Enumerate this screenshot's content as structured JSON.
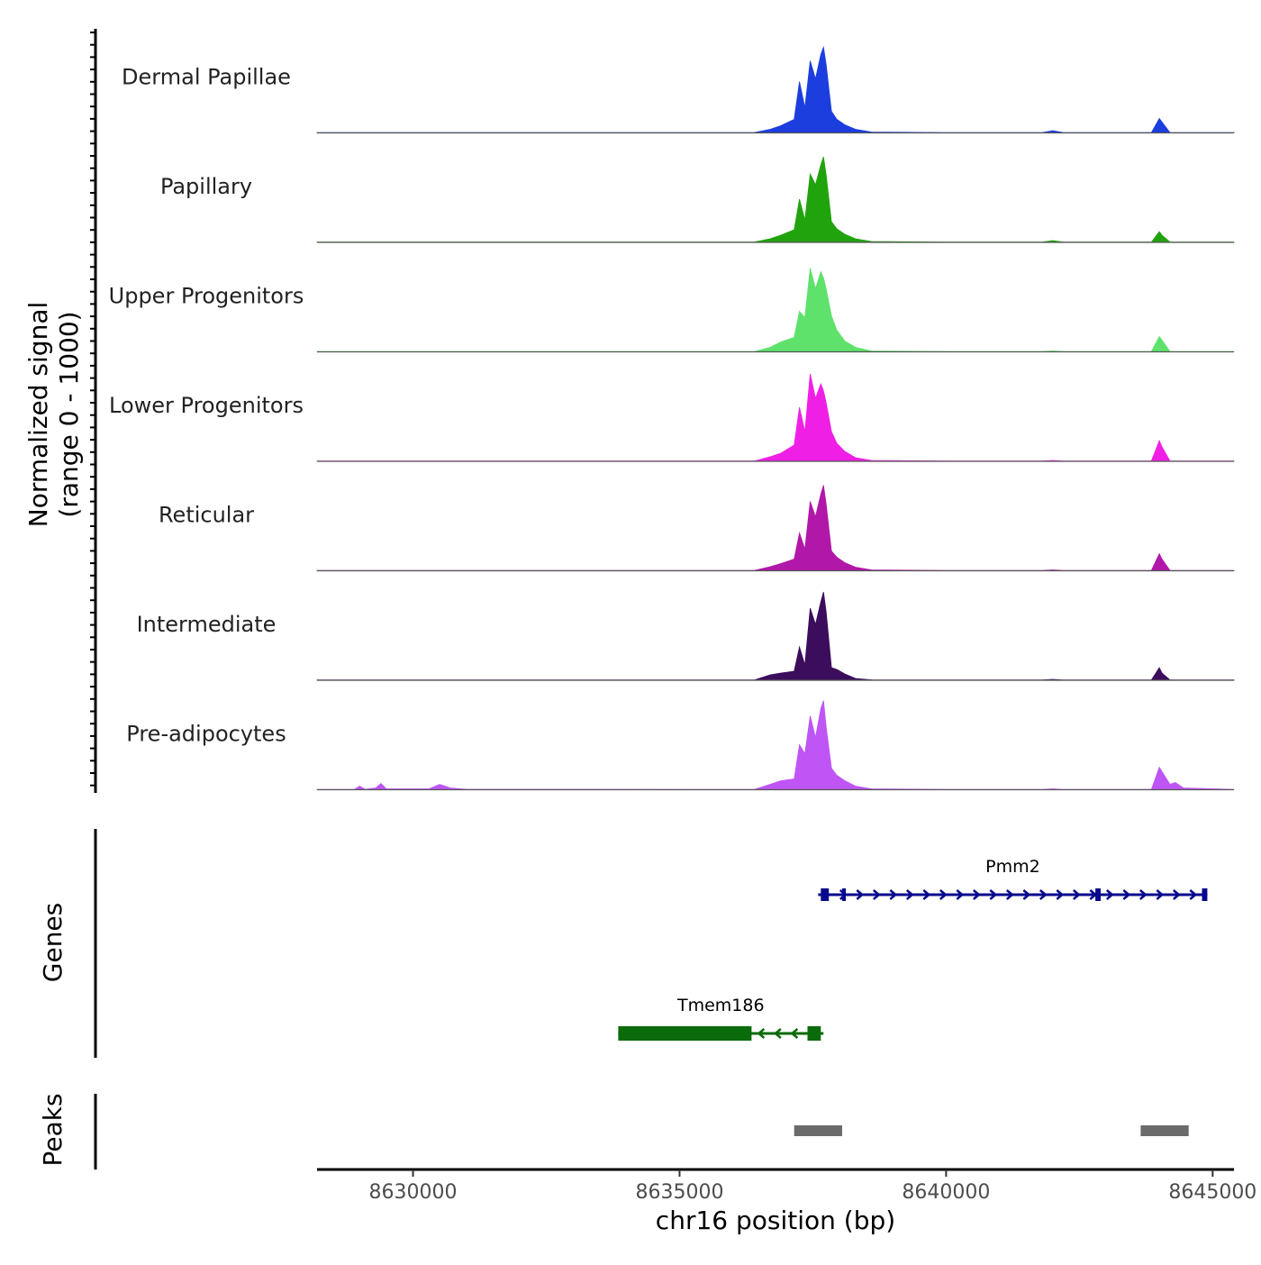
{
  "chart_data": {
    "type": "area",
    "title": "",
    "xlabel": "chr16 position (bp)",
    "ylabel": [
      "Normalized signal",
      "(range 0 - 1000)"
    ],
    "xlim": [
      8628200,
      8645400
    ],
    "xticks": [
      8630000,
      8635000,
      8640000,
      8645000
    ],
    "xtick_labels": [
      "8630000",
      "8635000",
      "8640000",
      "8645000"
    ],
    "ylim": [
      0,
      1000
    ],
    "series": [
      {
        "name": "Dermal Papillae",
        "color": "#1c3edf",
        "x": [
          8628200,
          8636400,
          8636700,
          8636900,
          8637150,
          8637250,
          8637350,
          8637450,
          8637550,
          8637650,
          8637700,
          8637750,
          8637850,
          8637950,
          8638100,
          8638300,
          8638600,
          8640000,
          8641800,
          8642000,
          8642200,
          8643300,
          8643850,
          8644000,
          8644050,
          8644200,
          8644500,
          8645400
        ],
        "values": [
          3,
          3,
          40,
          80,
          150,
          570,
          280,
          800,
          600,
          870,
          950,
          760,
          240,
          150,
          90,
          40,
          10,
          3,
          3,
          25,
          3,
          3,
          3,
          160,
          120,
          3,
          3,
          3
        ]
      },
      {
        "name": "Papillary",
        "color": "#21a30d",
        "x": [
          8628200,
          8636400,
          8636700,
          8636900,
          8637150,
          8637250,
          8637350,
          8637450,
          8637550,
          8637650,
          8637700,
          8637750,
          8637850,
          8637950,
          8638100,
          8638300,
          8638600,
          8640000,
          8641800,
          8642000,
          8642200,
          8643300,
          8643850,
          8644000,
          8644050,
          8644200,
          8644500,
          8645400
        ],
        "values": [
          3,
          3,
          40,
          80,
          140,
          480,
          250,
          760,
          640,
          860,
          950,
          750,
          230,
          150,
          90,
          40,
          10,
          3,
          3,
          20,
          3,
          3,
          3,
          120,
          80,
          3,
          3,
          3
        ]
      },
      {
        "name": "Upper Progenitors",
        "color": "#5ee26c",
        "x": [
          8628200,
          8636400,
          8636700,
          8636900,
          8637150,
          8637250,
          8637350,
          8637450,
          8637550,
          8637650,
          8637700,
          8637750,
          8637850,
          8637950,
          8638100,
          8638300,
          8638600,
          8640000,
          8641800,
          8642000,
          8642200,
          8643300,
          8643850,
          8644000,
          8644050,
          8644200,
          8644500,
          8645400
        ],
        "values": [
          3,
          3,
          50,
          110,
          160,
          450,
          380,
          930,
          700,
          890,
          820,
          700,
          400,
          240,
          120,
          50,
          10,
          3,
          3,
          10,
          3,
          3,
          3,
          170,
          130,
          3,
          3,
          3
        ]
      },
      {
        "name": "Lower Progenitors",
        "color": "#f01fe6",
        "x": [
          8628200,
          8636400,
          8636700,
          8636900,
          8637150,
          8637250,
          8637350,
          8637450,
          8637550,
          8637650,
          8637700,
          8637750,
          8637850,
          8637950,
          8638100,
          8638300,
          8638600,
          8640000,
          8641800,
          8642000,
          8642200,
          8643300,
          8643850,
          8644000,
          8644050,
          8644200,
          8644500,
          8645400
        ],
        "values": [
          3,
          3,
          50,
          90,
          180,
          600,
          330,
          970,
          700,
          860,
          780,
          650,
          330,
          200,
          110,
          40,
          10,
          3,
          3,
          10,
          3,
          3,
          3,
          230,
          160,
          3,
          3,
          3
        ]
      },
      {
        "name": "Reticular",
        "color": "#b117a8",
        "x": [
          8628200,
          8636400,
          8636700,
          8636900,
          8637150,
          8637250,
          8637350,
          8637450,
          8637550,
          8637650,
          8637700,
          8637750,
          8637850,
          8637950,
          8638100,
          8638300,
          8638600,
          8640000,
          8641800,
          8642000,
          8642200,
          8643300,
          8643850,
          8644000,
          8644050,
          8644200,
          8644500,
          8645400
        ],
        "values": [
          3,
          3,
          45,
          80,
          130,
          420,
          240,
          770,
          600,
          850,
          950,
          740,
          220,
          150,
          90,
          40,
          10,
          3,
          3,
          10,
          3,
          3,
          3,
          190,
          130,
          3,
          3,
          3
        ]
      },
      {
        "name": "Intermediate",
        "color": "#3b0d5c",
        "x": [
          8628200,
          8636400,
          8636700,
          8636900,
          8637150,
          8637250,
          8637350,
          8637450,
          8637550,
          8637650,
          8637700,
          8637750,
          8637850,
          8637950,
          8638100,
          8638300,
          8638600,
          8640000,
          8641800,
          8642000,
          8642200,
          8643300,
          8643850,
          8644000,
          8644050,
          8644200,
          8644500,
          8645400
        ],
        "values": [
          3,
          3,
          60,
          80,
          100,
          370,
          170,
          800,
          620,
          870,
          980,
          760,
          140,
          120,
          70,
          20,
          5,
          3,
          3,
          10,
          3,
          3,
          3,
          140,
          80,
          3,
          3,
          3
        ]
      },
      {
        "name": "Pre-adipocytes",
        "color": "#bf55f5",
        "x": [
          8628200,
          8628900,
          8629000,
          8629100,
          8629300,
          8629400,
          8629500,
          8630300,
          8630500,
          8630700,
          8631000,
          8636400,
          8636700,
          8636900,
          8637150,
          8637250,
          8637350,
          8637450,
          8637550,
          8637650,
          8637700,
          8637750,
          8637850,
          8637950,
          8638100,
          8638300,
          8638600,
          8640000,
          8641800,
          8642000,
          8642200,
          8643300,
          8643850,
          8644000,
          8644050,
          8644200,
          8644300,
          8644450,
          8645400
        ],
        "values": [
          3,
          3,
          40,
          5,
          20,
          70,
          10,
          10,
          60,
          20,
          5,
          3,
          60,
          100,
          120,
          500,
          400,
          820,
          580,
          900,
          990,
          700,
          240,
          160,
          100,
          40,
          10,
          3,
          3,
          10,
          3,
          3,
          3,
          250,
          200,
          60,
          80,
          20,
          3
        ]
      }
    ],
    "genes_track": {
      "label": "Genes",
      "genes": [
        {
          "name": "Pmm2",
          "start": 8637600,
          "end": 8644900,
          "strand": "+",
          "color": "#08088e",
          "exons": [
            [
              8637650,
              8637800
            ],
            [
              8638050,
              8638120
            ],
            [
              8642800,
              8642900
            ],
            [
              8644800,
              8644900
            ]
          ]
        },
        {
          "name": "Tmem186",
          "start": 8633850,
          "end": 8637700,
          "strand": "-",
          "color": "#0a6b0a",
          "exons": [
            [
              8633850,
              8636350
            ],
            [
              8637400,
              8637650
            ]
          ]
        }
      ]
    },
    "peaks_track": {
      "label": "Peaks",
      "color": "#6b6b6b",
      "peaks": [
        [
          8637150,
          8638050
        ],
        [
          8643650,
          8644550
        ]
      ]
    }
  }
}
